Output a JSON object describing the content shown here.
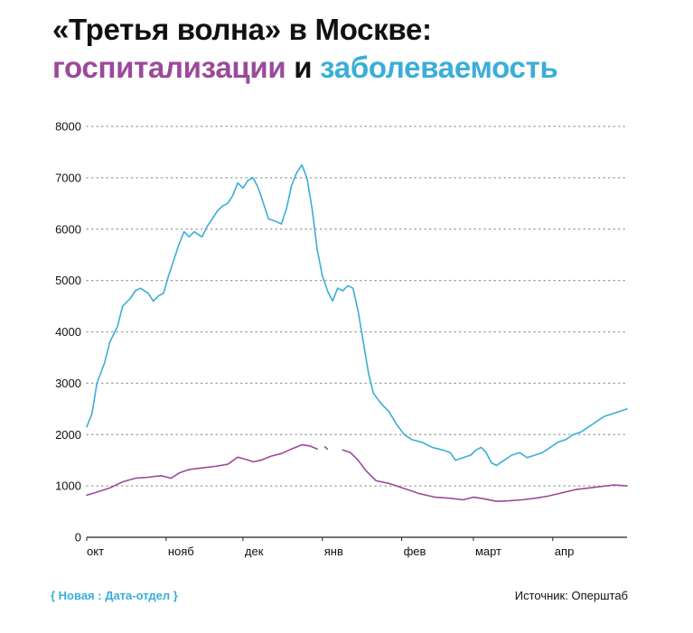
{
  "title": {
    "line1": "«Третья волна» в Москве:",
    "hosp_word": "госпитализации",
    "connector": " и ",
    "cases_word": "заболеваемость"
  },
  "colors": {
    "hospitalizations": "#9b4a9a",
    "cases": "#3aaed8",
    "grid": "#9a9a9a",
    "text": "#111111"
  },
  "footer": {
    "brand": "{ Новая : Дата-отдел }",
    "source": "Источник: Оперштаб"
  },
  "chart_data": {
    "type": "line",
    "ylim": [
      0,
      8000
    ],
    "yticks": [
      "0",
      "1000",
      "2000",
      "3000",
      "4000",
      "5000",
      "6000",
      "7000",
      "8000"
    ],
    "xlim": [
      "2020-10-01",
      "2021-04-30"
    ],
    "xticks": [
      {
        "label": "окт",
        "date": "2020-10-01"
      },
      {
        "label": "нояб",
        "date": "2020-11-01"
      },
      {
        "label": "дек",
        "date": "2020-12-01"
      },
      {
        "label": "янв",
        "date": "2021-01-01"
      },
      {
        "label": "фев",
        "date": "2021-02-01"
      },
      {
        "label": "март",
        "date": "2021-03-01"
      },
      {
        "label": "апр",
        "date": "2021-04-01"
      }
    ],
    "grid": true,
    "series": [
      {
        "name": "заболеваемость",
        "color": "#3aaed8",
        "points": [
          [
            "2020-10-01",
            2150
          ],
          [
            "2020-10-03",
            2400
          ],
          [
            "2020-10-05",
            3000
          ],
          [
            "2020-10-08",
            3400
          ],
          [
            "2020-10-10",
            3800
          ],
          [
            "2020-10-13",
            4100
          ],
          [
            "2020-10-15",
            4500
          ],
          [
            "2020-10-18",
            4650
          ],
          [
            "2020-10-20",
            4800
          ],
          [
            "2020-10-22",
            4850
          ],
          [
            "2020-10-25",
            4750
          ],
          [
            "2020-10-27",
            4600
          ],
          [
            "2020-10-29",
            4700
          ],
          [
            "2020-10-31",
            4750
          ],
          [
            "2020-11-02",
            5100
          ],
          [
            "2020-11-04",
            5400
          ],
          [
            "2020-11-06",
            5700
          ],
          [
            "2020-11-08",
            5950
          ],
          [
            "2020-11-10",
            5850
          ],
          [
            "2020-11-12",
            5950
          ],
          [
            "2020-11-15",
            5850
          ],
          [
            "2020-11-17",
            6050
          ],
          [
            "2020-11-19",
            6200
          ],
          [
            "2020-11-21",
            6350
          ],
          [
            "2020-11-23",
            6450
          ],
          [
            "2020-11-25",
            6500
          ],
          [
            "2020-11-27",
            6650
          ],
          [
            "2020-11-29",
            6900
          ],
          [
            "2020-12-01",
            6800
          ],
          [
            "2020-12-03",
            6950
          ],
          [
            "2020-12-05",
            7000
          ],
          [
            "2020-12-07",
            6800
          ],
          [
            "2020-12-09",
            6500
          ],
          [
            "2020-12-11",
            6200
          ],
          [
            "2020-12-14",
            6150
          ],
          [
            "2020-12-16",
            6100
          ],
          [
            "2020-12-18",
            6400
          ],
          [
            "2020-12-20",
            6850
          ],
          [
            "2020-12-22",
            7100
          ],
          [
            "2020-12-24",
            7250
          ],
          [
            "2020-12-26",
            7000
          ],
          [
            "2020-12-28",
            6400
          ],
          [
            "2020-12-30",
            5600
          ],
          [
            "2021-01-01",
            5100
          ],
          [
            "2021-01-03",
            4800
          ],
          [
            "2021-01-05",
            4600
          ],
          [
            "2021-01-07",
            4850
          ],
          [
            "2021-01-09",
            4800
          ],
          [
            "2021-01-11",
            4900
          ],
          [
            "2021-01-13",
            4850
          ],
          [
            "2021-01-15",
            4400
          ],
          [
            "2021-01-17",
            3800
          ],
          [
            "2021-01-19",
            3200
          ],
          [
            "2021-01-21",
            2800
          ],
          [
            "2021-01-24",
            2600
          ],
          [
            "2021-01-27",
            2450
          ],
          [
            "2021-01-30",
            2200
          ],
          [
            "2021-02-02",
            2000
          ],
          [
            "2021-02-05",
            1900
          ],
          [
            "2021-02-09",
            1850
          ],
          [
            "2021-02-13",
            1750
          ],
          [
            "2021-02-17",
            1700
          ],
          [
            "2021-02-20",
            1650
          ],
          [
            "2021-02-22",
            1500
          ],
          [
            "2021-02-25",
            1550
          ],
          [
            "2021-02-28",
            1600
          ],
          [
            "2021-03-02",
            1700
          ],
          [
            "2021-03-04",
            1750
          ],
          [
            "2021-03-06",
            1650
          ],
          [
            "2021-03-08",
            1450
          ],
          [
            "2021-03-10",
            1400
          ],
          [
            "2021-03-13",
            1500
          ],
          [
            "2021-03-16",
            1600
          ],
          [
            "2021-03-19",
            1650
          ],
          [
            "2021-03-22",
            1550
          ],
          [
            "2021-03-25",
            1600
          ],
          [
            "2021-03-28",
            1650
          ],
          [
            "2021-03-31",
            1750
          ],
          [
            "2021-04-03",
            1850
          ],
          [
            "2021-04-06",
            1900
          ],
          [
            "2021-04-09",
            2000
          ],
          [
            "2021-04-12",
            2050
          ],
          [
            "2021-04-15",
            2150
          ],
          [
            "2021-04-18",
            2250
          ],
          [
            "2021-04-21",
            2350
          ],
          [
            "2021-04-24",
            2400
          ],
          [
            "2021-04-27",
            2450
          ],
          [
            "2021-04-30",
            2500
          ]
        ]
      },
      {
        "name": "госпитализации",
        "color": "#9b4a9a",
        "segments": [
          [
            [
              "2020-10-01",
              820
            ],
            [
              "2020-10-05",
              880
            ],
            [
              "2020-10-10",
              960
            ],
            [
              "2020-10-15",
              1080
            ],
            [
              "2020-10-20",
              1150
            ],
            [
              "2020-10-25",
              1170
            ],
            [
              "2020-10-30",
              1200
            ],
            [
              "2020-11-03",
              1150
            ],
            [
              "2020-11-06",
              1250
            ],
            [
              "2020-11-10",
              1320
            ],
            [
              "2020-11-15",
              1350
            ],
            [
              "2020-11-20",
              1380
            ],
            [
              "2020-11-25",
              1420
            ],
            [
              "2020-11-29",
              1560
            ],
            [
              "2020-12-02",
              1520
            ],
            [
              "2020-12-05",
              1470
            ],
            [
              "2020-12-08",
              1500
            ],
            [
              "2020-12-12",
              1580
            ],
            [
              "2020-12-16",
              1630
            ],
            [
              "2020-12-20",
              1720
            ],
            [
              "2020-12-24",
              1800
            ],
            [
              "2020-12-27",
              1780
            ],
            [
              "2020-12-30",
              1720
            ]
          ],
          [
            [
              "2021-01-02",
              1760
            ],
            [
              "2021-01-03",
              1720
            ]
          ],
          [
            [
              "2021-01-09",
              1700
            ],
            [
              "2021-01-12",
              1650
            ],
            [
              "2021-01-15",
              1500
            ],
            [
              "2021-01-18",
              1300
            ],
            [
              "2021-01-22",
              1100
            ],
            [
              "2021-01-27",
              1050
            ],
            [
              "2021-02-02",
              950
            ],
            [
              "2021-02-08",
              850
            ],
            [
              "2021-02-14",
              780
            ],
            [
              "2021-02-20",
              760
            ],
            [
              "2021-02-25",
              730
            ],
            [
              "2021-03-01",
              780
            ],
            [
              "2021-03-05",
              750
            ],
            [
              "2021-03-10",
              700
            ],
            [
              "2021-03-15",
              710
            ],
            [
              "2021-03-20",
              730
            ],
            [
              "2021-03-25",
              760
            ],
            [
              "2021-03-30",
              800
            ],
            [
              "2021-04-05",
              870
            ],
            [
              "2021-04-10",
              930
            ],
            [
              "2021-04-15",
              960
            ],
            [
              "2021-04-20",
              990
            ],
            [
              "2021-04-25",
              1020
            ],
            [
              "2021-04-30",
              1000
            ]
          ]
        ]
      }
    ]
  }
}
